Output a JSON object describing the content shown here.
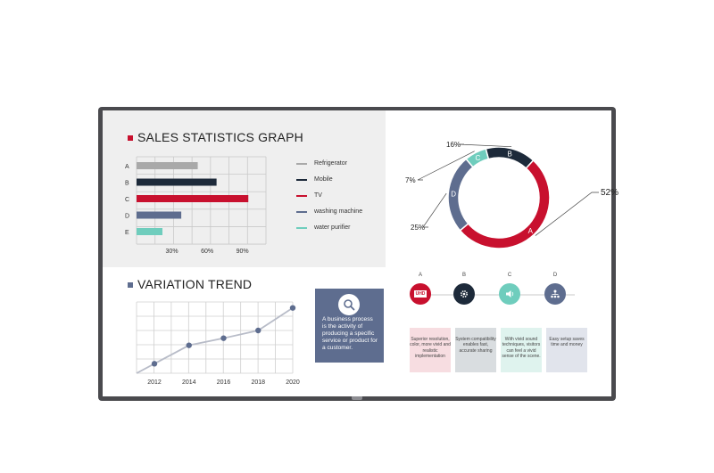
{
  "sales": {
    "title": "SALES STATISTICS GRAPH",
    "title_color": "#c8102e",
    "categories": [
      "A",
      "B",
      "C",
      "D",
      "E"
    ],
    "x_ticks": [
      "30%",
      "60%",
      "90%"
    ],
    "legend": [
      {
        "label": "Refrigerator",
        "color": "#a9a9a9"
      },
      {
        "label": "Mobile",
        "color": "#1d2a3a"
      },
      {
        "label": "TV",
        "color": "#c8102e"
      },
      {
        "label": "washing machine",
        "color": "#5e6d8f"
      },
      {
        "label": "water purifier",
        "color": "#6fcdbd"
      }
    ]
  },
  "donut": {
    "slices": [
      {
        "letter": "A",
        "label": "52%",
        "color": "#c8102e"
      },
      {
        "letter": "D",
        "label": "25%",
        "color": "#5e6d8f"
      },
      {
        "letter": "C",
        "label": "7%",
        "color": "#6fcdbd"
      },
      {
        "letter": "B",
        "label": "16%",
        "color": "#1d2a3a"
      }
    ]
  },
  "variation": {
    "title": "VARIATION TREND",
    "title_color": "#5e6d8f",
    "x_ticks": [
      "2012",
      "2014",
      "2016",
      "2018",
      "2020"
    ]
  },
  "info_box": {
    "text": "A business process is the activity of producing a specific service or product for a customer.",
    "icon": "magnifier-icon"
  },
  "features": [
    {
      "letter": "A",
      "icon": "uhd-icon",
      "icon_text": "UHD",
      "color": "#c8102e",
      "card_bg": "#f7dde1",
      "text": "Superior resolution, color, more vivid and realistic implementation"
    },
    {
      "letter": "B",
      "icon": "gear-icon",
      "color": "#1d2a3a",
      "card_bg": "#d9dde0",
      "text": "System compatibility enables fast, accurate sharing"
    },
    {
      "letter": "C",
      "icon": "speaker-icon",
      "color": "#6fcdbd",
      "card_bg": "#dff3ee",
      "text": "With vivid sound techniques, visitors can feel a vivid sense of the scene."
    },
    {
      "letter": "D",
      "icon": "network-icon",
      "color": "#5e6d8f",
      "card_bg": "#e1e4ec",
      "text": "Easy setup saves time and money"
    }
  ],
  "chart_data": [
    {
      "type": "bar",
      "title": "SALES STATISTICS GRAPH",
      "orientation": "horizontal",
      "categories": [
        "A",
        "B",
        "C",
        "D",
        "E"
      ],
      "values": [
        52,
        68,
        95,
        38,
        22
      ],
      "colors": [
        "#a9a9a9",
        "#1d2a3a",
        "#c8102e",
        "#5e6d8f",
        "#6fcdbd"
      ],
      "x_ticks": [
        "30%",
        "60%",
        "90%"
      ],
      "xlim": [
        0,
        110
      ],
      "grid": true
    },
    {
      "type": "pie",
      "donut": true,
      "categories": [
        "A",
        "B",
        "C",
        "D"
      ],
      "values": [
        52,
        16,
        7,
        25
      ],
      "labels": [
        "52%",
        "16%",
        "7%",
        "25%"
      ]
    },
    {
      "type": "line",
      "title": "VARIATION TREND",
      "x": [
        "2012",
        "2014",
        "2016",
        "2018",
        "2020"
      ],
      "values": [
        0.8,
        2.35,
        2.95,
        3.6,
        5.5
      ],
      "ylim": [
        0,
        6
      ],
      "grid": true
    }
  ]
}
